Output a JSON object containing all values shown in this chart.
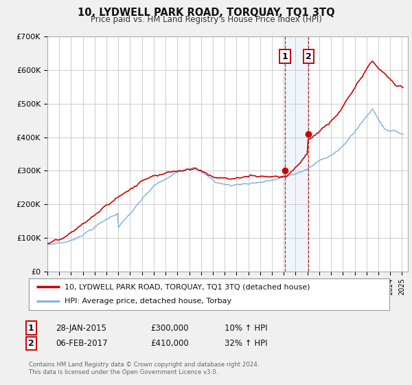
{
  "title": "10, LYDWELL PARK ROAD, TORQUAY, TQ1 3TQ",
  "subtitle": "Price paid vs. HM Land Registry's House Price Index (HPI)",
  "ylabel_ticks": [
    "£0",
    "£100K",
    "£200K",
    "£300K",
    "£400K",
    "£500K",
    "£600K",
    "£700K"
  ],
  "ytick_values": [
    0,
    100000,
    200000,
    300000,
    400000,
    500000,
    600000,
    700000
  ],
  "ylim": [
    0,
    700000
  ],
  "xlim_start": 1995.0,
  "xlim_end": 2025.5,
  "legend_line1": "10, LYDWELL PARK ROAD, TORQUAY, TQ1 3TQ (detached house)",
  "legend_line2": "HPI: Average price, detached house, Torbay",
  "sale1_label": "1",
  "sale1_date": "28-JAN-2015",
  "sale1_price": "£300,000",
  "sale1_hpi": "10% ↑ HPI",
  "sale1_x": 2015.08,
  "sale1_y": 300000,
  "sale2_label": "2",
  "sale2_date": "06-FEB-2017",
  "sale2_price": "£410,000",
  "sale2_hpi": "32% ↑ HPI",
  "sale2_x": 2017.1,
  "sale2_y": 410000,
  "shade_x1": 2015.08,
  "shade_x2": 2017.1,
  "red_color": "#cc0000",
  "blue_color": "#7aade0",
  "background_color": "#f0f0f0",
  "plot_bg_color": "#ffffff",
  "grid_color": "#cccccc",
  "footnote": "Contains HM Land Registry data © Crown copyright and database right 2024.\nThis data is licensed under the Open Government Licence v3.0."
}
